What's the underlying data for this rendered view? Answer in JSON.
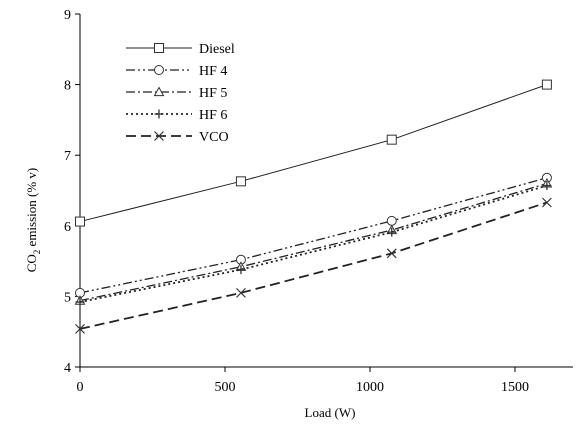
{
  "chart_data": {
    "type": "line",
    "xlabel": "Load (W)",
    "ylabel_main": "CO",
    "ylabel_sub": "2",
    "ylabel_rest": " emission (% v)",
    "xlim": [
      0,
      1700
    ],
    "ylim": [
      4,
      9
    ],
    "xticks": [
      0,
      500,
      1000,
      1500
    ],
    "yticks": [
      4,
      5,
      6,
      7,
      8,
      9
    ],
    "grid": false,
    "legend_position": "top-left",
    "series": [
      {
        "name": "Diesel",
        "marker": "square",
        "dash": "solid",
        "x": [
          0,
          555,
          1075,
          1610
        ],
        "values": [
          6.06,
          6.63,
          7.22,
          8.0
        ]
      },
      {
        "name": "HF 4",
        "marker": "circle",
        "dash": "dash-dot-dot",
        "x": [
          0,
          555,
          1075,
          1610
        ],
        "values": [
          5.05,
          5.52,
          6.07,
          6.68
        ]
      },
      {
        "name": "HF 5",
        "marker": "triangle",
        "dash": "dash-dot",
        "x": [
          0,
          555,
          1075,
          1610
        ],
        "values": [
          4.94,
          5.42,
          5.94,
          6.6
        ]
      },
      {
        "name": "HF 6",
        "marker": "plus",
        "dash": "dotted",
        "x": [
          0,
          555,
          1075,
          1610
        ],
        "values": [
          4.92,
          5.38,
          5.91,
          6.57
        ]
      },
      {
        "name": "VCO",
        "marker": "x",
        "dash": "dashed",
        "x": [
          0,
          555,
          1075,
          1610
        ],
        "values": [
          4.54,
          5.05,
          5.61,
          6.33
        ]
      }
    ]
  }
}
